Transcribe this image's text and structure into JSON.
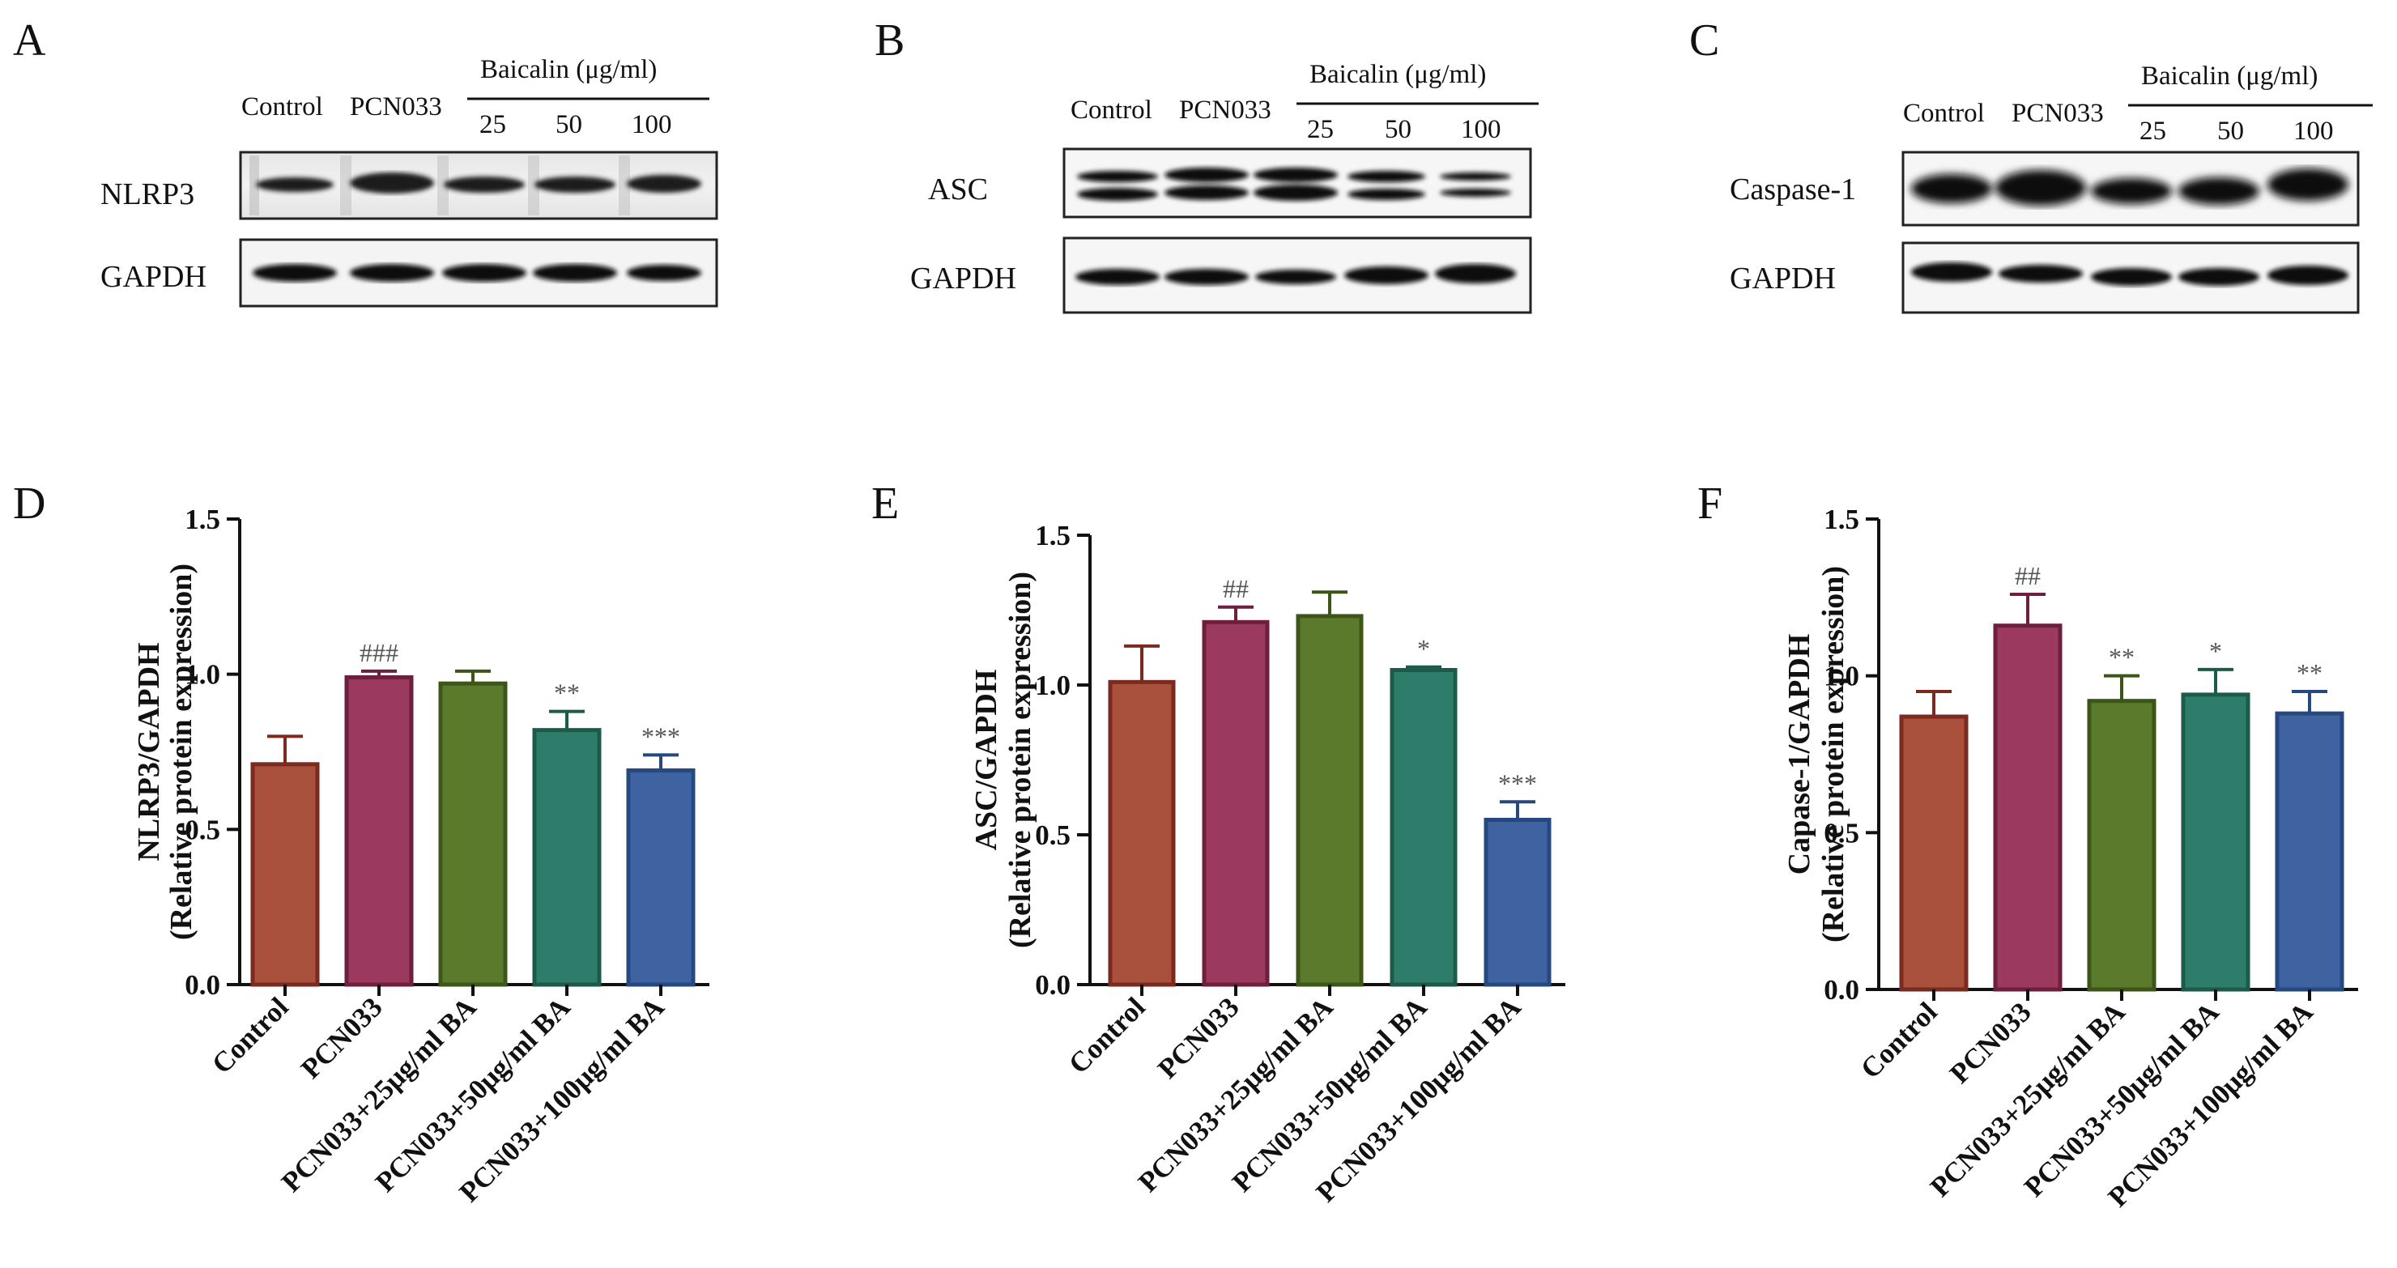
{
  "panels": [
    {
      "letter": "A",
      "target": "NLRP3",
      "control": "GAPDH"
    },
    {
      "letter": "B",
      "target": "ASC",
      "control": "GAPDH"
    },
    {
      "letter": "C",
      "target": "Caspase-1",
      "control": "GAPDH"
    }
  ],
  "blot_header": {
    "lanes": [
      "Control",
      "PCN033"
    ],
    "group_label": "Baicalin (μg/ml)",
    "doses": [
      "25",
      "50",
      "100"
    ]
  },
  "chart_data": [
    {
      "letter": "D",
      "type": "bar",
      "ylabel_line1": "NLRP3/GAPDH",
      "ylabel_line2": "(Relative protein expression)",
      "ylim": [
        0,
        1.5
      ],
      "yticks": [
        "0.0",
        "0.5",
        "1.0",
        "1.5"
      ],
      "categories": [
        "Control",
        "PCN033",
        "PCN033+25μg/ml BA",
        "PCN033+50μg/ml BA",
        "PCN033+100μg/ml BA"
      ],
      "values": [
        0.71,
        0.99,
        0.97,
        0.82,
        0.69
      ],
      "errors": [
        0.09,
        0.02,
        0.04,
        0.06,
        0.05
      ],
      "significance": [
        "",
        "###",
        "",
        "**",
        "***"
      ]
    },
    {
      "letter": "E",
      "type": "bar",
      "ylabel_line1": "ASC/GAPDH",
      "ylabel_line2": "(Relative protein expression)",
      "ylim": [
        0,
        1.5
      ],
      "yticks": [
        "0.0",
        "0.5",
        "1.0",
        "1.5"
      ],
      "categories": [
        "Control",
        "PCN033",
        "PCN033+25μg/ml BA",
        "PCN033+50μg/ml BA",
        "PCN033+100μg/ml BA"
      ],
      "values": [
        1.01,
        1.21,
        1.23,
        1.05,
        0.55
      ],
      "errors": [
        0.12,
        0.05,
        0.08,
        0.01,
        0.06
      ],
      "significance": [
        "",
        "##",
        "",
        "*",
        "***"
      ]
    },
    {
      "letter": "F",
      "type": "bar",
      "ylabel_line1": "Capase-1/GAPDH",
      "ylabel_line2": "(Relative protein expression)",
      "ylim": [
        0,
        1.5
      ],
      "yticks": [
        "0.0",
        "0.5",
        "1.0",
        "1.5"
      ],
      "categories": [
        "Control",
        "PCN033",
        "PCN033+25μg/ml BA",
        "PCN033+50μg/ml BA",
        "PCN033+100μg/ml BA"
      ],
      "values": [
        0.87,
        1.16,
        0.92,
        0.94,
        0.88
      ],
      "errors": [
        0.08,
        0.1,
        0.08,
        0.08,
        0.07
      ],
      "significance": [
        "",
        "##",
        "**",
        "*",
        "**"
      ]
    }
  ],
  "colors": {
    "bar_fills": [
      "#a9513c",
      "#9b3a5e",
      "#5c7a2c",
      "#2e7d6a",
      "#3e63a0"
    ],
    "bar_edges": [
      "#7a2a1e",
      "#6e1f3e",
      "#3c5618",
      "#1c5a4a",
      "#264880"
    ],
    "axis": "#111111"
  }
}
